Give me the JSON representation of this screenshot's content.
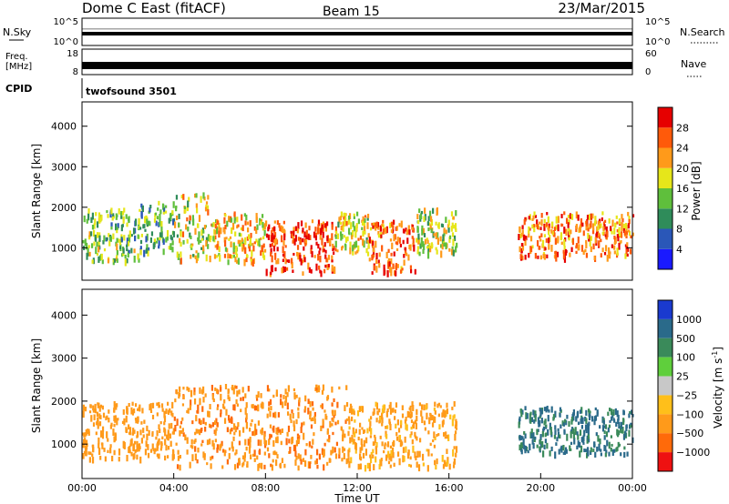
{
  "header": {
    "station": "Dome C East (fitACF)",
    "beam": "Beam 15",
    "date": "23/Mar/2015"
  },
  "top_panels": {
    "nsky_label": "N.Sky",
    "nsky_ticks": [
      "10^5",
      "10^0"
    ],
    "nsearch_label": "N.Search",
    "nsearch_ticks": [
      "10^5",
      "10^0"
    ],
    "freq_label": "Freq.",
    "freq_unit": "[MHz]",
    "freq_ticks": [
      "18",
      "8"
    ],
    "nave_label": "Nave",
    "nave_ticks": [
      "60",
      "0"
    ],
    "cpid_label": "CPID",
    "cpid_value": "twofsound 3501"
  },
  "colors": {
    "power_scale": [
      "#1a1aff",
      "#2a57b8",
      "#2f8c5a",
      "#5fbf3c",
      "#e6e61a",
      "#ff9a1a",
      "#ff5a0a",
      "#e60000"
    ],
    "velocity_scale": [
      "#ee1111",
      "#ff6a0a",
      "#ff9a1a",
      "#ffbf1a",
      "#c8c8c8",
      "#5fcf3c",
      "#3a8a5a",
      "#2a6a8a",
      "#1a3acf"
    ]
  },
  "chart_data": [
    {
      "type": "heatmap",
      "name": "power",
      "xlabel": "",
      "ylabel": "Slant Range [km]",
      "xlim": [
        0,
        24
      ],
      "ylim": [
        200,
        4600
      ],
      "yticks": [
        "4000",
        "3000",
        "2000",
        "1000"
      ],
      "colorbar_label": "Power [dB]",
      "colorbar_ticks": [
        "28",
        "24",
        "20",
        "16",
        "12",
        "8",
        "4"
      ],
      "colorbar_range": [
        0,
        32
      ],
      "echo_regions": [
        {
          "t0": 0.0,
          "t1": 2.5,
          "r0": 700,
          "r1": 2000,
          "level": 14
        },
        {
          "t0": 2.5,
          "t1": 4.0,
          "r0": 900,
          "r1": 2200,
          "level": 12
        },
        {
          "t0": 4.0,
          "t1": 5.5,
          "r0": 700,
          "r1": 2400,
          "level": 18
        },
        {
          "t0": 5.5,
          "t1": 8.0,
          "r0": 700,
          "r1": 1900,
          "level": 20
        },
        {
          "t0": 8.0,
          "t1": 11.0,
          "r0": 400,
          "r1": 1700,
          "level": 27
        },
        {
          "t0": 11.0,
          "t1": 12.5,
          "r0": 900,
          "r1": 1900,
          "level": 18
        },
        {
          "t0": 12.5,
          "t1": 14.5,
          "r0": 400,
          "r1": 1700,
          "level": 26
        },
        {
          "t0": 14.5,
          "t1": 16.3,
          "r0": 900,
          "r1": 2000,
          "level": 17
        },
        {
          "t0": 19.0,
          "t1": 24.0,
          "r0": 800,
          "r1": 1900,
          "level": 24
        }
      ]
    },
    {
      "type": "heatmap",
      "name": "velocity",
      "xlabel": "Time UT",
      "ylabel": "Slant Range [km]",
      "xlim": [
        0,
        24
      ],
      "ylim": [
        200,
        4600
      ],
      "xticks": [
        "00:00",
        "04:00",
        "08:00",
        "12:00",
        "16:00",
        "20:00",
        "00:00"
      ],
      "yticks": [
        "4000",
        "3000",
        "2000",
        "1000"
      ],
      "colorbar_label": "Velocity [m s",
      "colorbar_label_sup": "-1",
      "colorbar_label_end": "]",
      "colorbar_ticks": [
        "1000",
        "500",
        "100",
        "25",
        "−25",
        "−100",
        "−500",
        "−1000"
      ],
      "echo_regions": [
        {
          "t0": 0.0,
          "t1": 4.0,
          "r0": 700,
          "r1": 2000,
          "velocity": -300
        },
        {
          "t0": 4.0,
          "t1": 11.5,
          "r0": 500,
          "r1": 2400,
          "velocity": -400
        },
        {
          "t0": 11.5,
          "t1": 16.3,
          "r0": 500,
          "r1": 2000,
          "velocity": -150
        },
        {
          "t0": 19.0,
          "t1": 24.0,
          "r0": 800,
          "r1": 1900,
          "velocity": 600
        }
      ]
    }
  ]
}
